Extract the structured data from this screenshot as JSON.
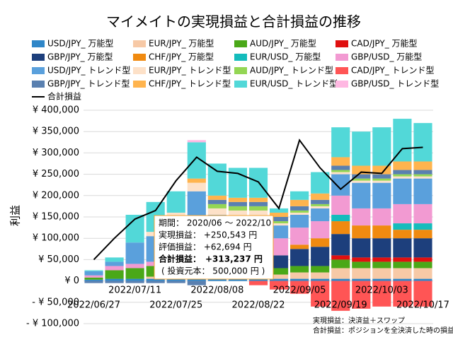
{
  "chart_data": {
    "type": "stacked_bar_line",
    "title": "マイメイトの実現損益と合計損益の推移",
    "y_label": "利益",
    "categories": [
      "2022/06/27",
      null,
      "2022/07/11",
      null,
      "2022/07/25",
      null,
      "2022/08/08",
      null,
      "2022/08/22",
      null,
      "2022/09/05",
      null,
      "2022/09/19",
      null,
      "2022/10/03",
      null,
      "2022/10/17"
    ],
    "ylim": [
      -100000,
      400000
    ],
    "yticks": [
      {
        "value": -100000,
        "label": "- ¥ 100,000"
      },
      {
        "value": -50000,
        "label": "- ¥ 50,000"
      },
      {
        "value": 0,
        "label": "¥ 0"
      },
      {
        "value": 50000,
        "label": "¥ 50,000"
      },
      {
        "value": 100000,
        "label": "¥ 100,000"
      },
      {
        "value": 150000,
        "label": "¥ 150,000"
      },
      {
        "value": 200000,
        "label": "¥ 200,000"
      },
      {
        "value": 250000,
        "label": "¥ 250,000"
      },
      {
        "value": 300000,
        "label": "¥ 300,000"
      },
      {
        "value": 350000,
        "label": "¥ 350,000"
      },
      {
        "value": 400000,
        "label": "¥ 400,000"
      }
    ],
    "grid": true,
    "series": [
      {
        "name": "USD/JPY_ 万能型",
        "color": "#2f86c8",
        "values": [
          3000,
          5000,
          5000,
          5000,
          5000,
          5000,
          5000,
          5000,
          5000,
          5000,
          5000,
          5000,
          5000,
          5000,
          5000,
          5000,
          5000
        ]
      },
      {
        "name": "EUR/JPY_ 万能型",
        "color": "#f7c9a6",
        "values": [
          0,
          0,
          0,
          5000,
          5000,
          10000,
          10000,
          10000,
          10000,
          10000,
          15000,
          15000,
          25000,
          25000,
          25000,
          25000,
          25000
        ]
      },
      {
        "name": "AUD/JPY_ 万能型",
        "color": "#4aa818",
        "values": [
          5000,
          20000,
          25000,
          25000,
          25000,
          25000,
          20000,
          20000,
          20000,
          15000,
          15000,
          15000,
          20000,
          15000,
          15000,
          15000,
          15000
        ]
      },
      {
        "name": "CAD/JPY_ 万能型",
        "color": "#e01010",
        "values": [
          0,
          0,
          0,
          0,
          0,
          0,
          0,
          0,
          0,
          0,
          0,
          0,
          10000,
          10000,
          10000,
          10000,
          10000
        ]
      },
      {
        "name": "GBP/JPY_ 万能型",
        "color": "#1d3f7c",
        "values": [
          0,
          0,
          0,
          0,
          0,
          0,
          0,
          0,
          0,
          30000,
          40000,
          45000,
          50000,
          45000,
          45000,
          45000,
          45000
        ]
      },
      {
        "name": "CHF/JPY_ 万能型",
        "color": "#f08a10",
        "values": [
          0,
          0,
          0,
          0,
          0,
          0,
          0,
          0,
          0,
          0,
          10000,
          20000,
          30000,
          30000,
          30000,
          20000,
          20000
        ]
      },
      {
        "name": "EUR/USD_ 万能型",
        "color": "#14bcbc",
        "values": [
          0,
          0,
          0,
          0,
          0,
          0,
          0,
          0,
          0,
          0,
          0,
          0,
          15000,
          0,
          0,
          15000,
          15000
        ]
      },
      {
        "name": "GBP/USD_ 万能型",
        "color": "#f29ad2",
        "values": [
          5000,
          10000,
          10000,
          10000,
          20000,
          20000,
          20000,
          25000,
          25000,
          40000,
          40000,
          40000,
          45000,
          40000,
          40000,
          45000,
          45000
        ]
      },
      {
        "name": "USD/JPY_ トレンド型",
        "color": "#5aa0dc",
        "values": [
          10000,
          10000,
          50000,
          60000,
          90000,
          150000,
          100000,
          90000,
          90000,
          30000,
          30000,
          30000,
          50000,
          60000,
          60000,
          60000,
          60000
        ]
      },
      {
        "name": "EUR/JPY_ トレンド型",
        "color": "#fde1c8",
        "values": [
          0,
          0,
          0,
          10000,
          15000,
          20000,
          15000,
          15000,
          15000,
          5000,
          5000,
          5000,
          5000,
          5000,
          5000,
          5000,
          5000
        ]
      },
      {
        "name": "AUD/JPY_ トレンド型",
        "color": "#94d654",
        "values": [
          0,
          0,
          0,
          0,
          0,
          0,
          10000,
          10000,
          10000,
          5000,
          5000,
          5000,
          5000,
          5000,
          5000,
          5000,
          5000
        ]
      },
      {
        "name": "CAD/JPY_ トレンド型",
        "color": "#ff5555",
        "values": [
          0,
          0,
          0,
          0,
          0,
          0,
          0,
          0,
          -10000,
          -20000,
          -30000,
          -60000,
          -70000,
          -65000,
          -60000,
          -60000,
          -60000
        ]
      },
      {
        "name": "GBP/JPY_ トレンド型",
        "color": "#5a80b0",
        "values": [
          -5000,
          -5000,
          -5000,
          -5000,
          -5000,
          -10000,
          10000,
          10000,
          10000,
          10000,
          10000,
          10000,
          10000,
          10000,
          10000,
          10000,
          10000
        ]
      },
      {
        "name": "CHF/JPY_ トレンド型",
        "color": "#ffb44e",
        "values": [
          0,
          0,
          0,
          0,
          0,
          10000,
          10000,
          10000,
          10000,
          10000,
          15000,
          15000,
          20000,
          20000,
          20000,
          20000,
          20000
        ]
      },
      {
        "name": "EUR/USD_ トレンド型",
        "color": "#52d8d8",
        "values": [
          2000,
          10000,
          65000,
          70000,
          50000,
          85000,
          75000,
          70000,
          70000,
          10000,
          20000,
          50000,
          70000,
          80000,
          90000,
          100000,
          90000
        ]
      },
      {
        "name": "GBP/USD_ トレンド型",
        "color": "#ffb8e2",
        "values": [
          0,
          0,
          0,
          0,
          0,
          5000,
          0,
          0,
          0,
          0,
          0,
          0,
          0,
          0,
          0,
          0,
          0
        ]
      }
    ],
    "line": {
      "name": "合計損益",
      "color": "#000000",
      "values": [
        50000,
        100000,
        145000,
        165000,
        235000,
        290000,
        257000,
        252000,
        232000,
        170000,
        330000,
        265000,
        215000,
        255000,
        252000,
        310000,
        313000
      ]
    },
    "annotation": {
      "period": "期間： 2020/06 ～ 2022/10",
      "realized": "実現損益： +250,543 円",
      "unrealized": "評価損益： +62,694 円",
      "total_label": "合計損益：",
      "total_value": "+313,237 円",
      "principal": "( 投資元本： 500,000 円 )"
    },
    "notes": [
      "実現損益：決済益＋スワップ",
      "合計損益：ポジションを全決済した時の損益"
    ]
  }
}
